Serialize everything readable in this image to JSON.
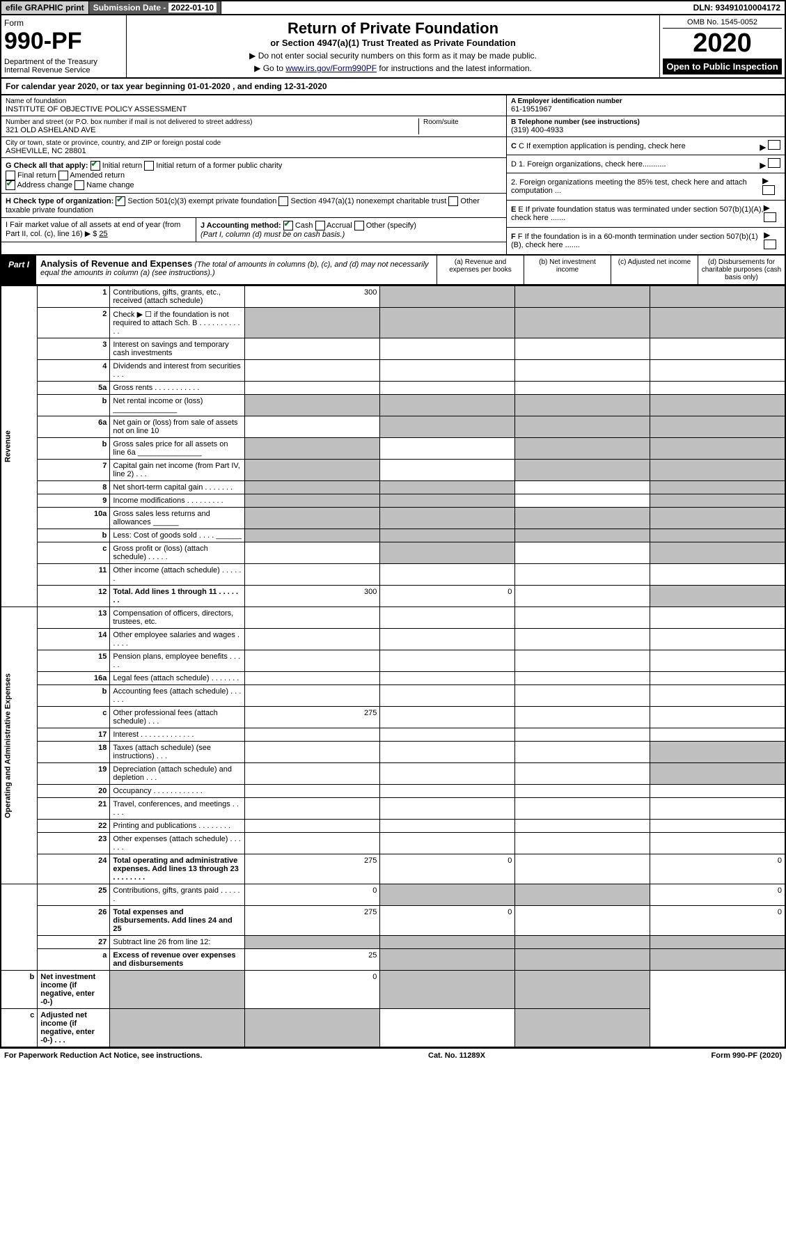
{
  "topbar": {
    "efile": "efile GRAPHIC print",
    "subdate_label": "Submission Date - ",
    "subdate": "2022-01-10",
    "dln": "DLN: 93491010004172"
  },
  "header": {
    "form_word": "Form",
    "form_no": "990-PF",
    "dept": "Department of the Treasury\nInternal Revenue Service",
    "title": "Return of Private Foundation",
    "sub": "or Section 4947(a)(1) Trust Treated as Private Foundation",
    "inst1": "▶ Do not enter social security numbers on this form as it may be made public.",
    "inst2_pre": "▶ Go to ",
    "inst2_link": "www.irs.gov/Form990PF",
    "inst2_post": " for instructions and the latest information.",
    "omb": "OMB No. 1545-0052",
    "year": "2020",
    "open": "Open to Public Inspection"
  },
  "cal": "For calendar year 2020, or tax year beginning 01-01-2020          , and ending 12-31-2020",
  "name": {
    "label": "Name of foundation",
    "val": "INSTITUTE OF OBJECTIVE POLICY ASSESSMENT"
  },
  "ein": {
    "label": "A Employer identification number",
    "val": "61-1951967"
  },
  "addr": {
    "label": "Number and street (or P.O. box number if mail is not delivered to street address)",
    "val": "321 OLD ASHELAND AVE",
    "room": "Room/suite"
  },
  "tel": {
    "label": "B Telephone number (see instructions)",
    "val": "(319) 400-4933"
  },
  "city": {
    "label": "City or town, state or province, country, and ZIP or foreign postal code",
    "val": "ASHEVILLE, NC  28801"
  },
  "c": "C If exemption application is pending, check here",
  "g": {
    "label": "G Check all that apply:",
    "opts": [
      "Initial return",
      "Initial return of a former public charity",
      "Final return",
      "Amended return",
      "Address change",
      "Name change"
    ],
    "checked": [
      0,
      4
    ]
  },
  "d": {
    "d1": "D 1. Foreign organizations, check here...........",
    "d2": "2. Foreign organizations meeting the 85% test, check here and attach computation ..."
  },
  "h": {
    "label": "H Check type of organization:",
    "opts": [
      "Section 501(c)(3) exempt private foundation",
      "Section 4947(a)(1) nonexempt charitable trust",
      "Other taxable private foundation"
    ],
    "checked": [
      0
    ]
  },
  "e": "E If private foundation status was terminated under section 507(b)(1)(A), check here .......",
  "i": {
    "label": "I Fair market value of all assets at end of year (from Part II, col. (c), line 16) ▶ $",
    "val": "25"
  },
  "j": {
    "label": "J Accounting method:",
    "opts": [
      "Cash",
      "Accrual",
      "Other (specify)"
    ],
    "checked": [
      0
    ],
    "note": "(Part I, column (d) must be on cash basis.)"
  },
  "f": "F If the foundation is in a 60-month termination under section 507(b)(1)(B), check here .......",
  "part1": {
    "tag": "Part I",
    "title": "Analysis of Revenue and Expenses",
    "note": "(The total of amounts in columns (b), (c), and (d) may not necessarily equal the amounts in column (a) (see instructions).)",
    "cols": [
      "(a) Revenue and expenses per books",
      "(b) Net investment income",
      "(c) Adjusted net income",
      "(d) Disbursements for charitable purposes (cash basis only)"
    ]
  },
  "vlabels": {
    "rev": "Revenue",
    "exp": "Operating and Administrative Expenses"
  },
  "rows": [
    {
      "ln": "1",
      "desc": "Contributions, gifts, grants, etc., received (attach schedule)",
      "a": "300",
      "grey": [
        "b",
        "c",
        "d"
      ]
    },
    {
      "ln": "2",
      "desc": "Check ▶ ☐ if the foundation is not required to attach Sch. B   .   .   .   .   .   .   .   .   .   .   .   .",
      "grey": [
        "a",
        "b",
        "c",
        "d"
      ]
    },
    {
      "ln": "3",
      "desc": "Interest on savings and temporary cash investments"
    },
    {
      "ln": "4",
      "desc": "Dividends and interest from securities   .   .   ."
    },
    {
      "ln": "5a",
      "desc": "Gross rents   .   .   .   .   .   .   .   .   .   .   ."
    },
    {
      "ln": "b",
      "desc": "Net rental income or (loss) _______________",
      "grey": [
        "a",
        "b",
        "c",
        "d"
      ]
    },
    {
      "ln": "6a",
      "desc": "Net gain or (loss) from sale of assets not on line 10",
      "grey": [
        "b",
        "c",
        "d"
      ]
    },
    {
      "ln": "b",
      "desc": "Gross sales price for all assets on line 6a _______________",
      "grey": [
        "a",
        "c",
        "d"
      ]
    },
    {
      "ln": "7",
      "desc": "Capital gain net income (from Part IV, line 2)   .   .   .",
      "grey": [
        "a",
        "c",
        "d"
      ]
    },
    {
      "ln": "8",
      "desc": "Net short-term capital gain   .   .   .   .   .   .   .",
      "grey": [
        "a",
        "b",
        "d"
      ]
    },
    {
      "ln": "9",
      "desc": "Income modifications   .   .   .   .   .   .   .   .   .",
      "grey": [
        "a",
        "b",
        "d"
      ]
    },
    {
      "ln": "10a",
      "desc": "Gross sales less returns and allowances ______",
      "grey": [
        "a",
        "b",
        "c",
        "d"
      ]
    },
    {
      "ln": "b",
      "desc": "Less: Cost of goods sold   .   .   .   .  ______",
      "grey": [
        "a",
        "b",
        "c",
        "d"
      ]
    },
    {
      "ln": "c",
      "desc": "Gross profit or (loss) (attach schedule)   .   .   .   .   .",
      "grey": [
        "b",
        "d"
      ]
    },
    {
      "ln": "11",
      "desc": "Other income (attach schedule)   .   .   .   .   .   ."
    },
    {
      "ln": "12",
      "desc": "Total. Add lines 1 through 11   .   .   .   .   .   .   .",
      "bold": true,
      "a": "300",
      "b": "0",
      "grey": [
        "d"
      ]
    },
    {
      "ln": "13",
      "desc": "Compensation of officers, directors, trustees, etc."
    },
    {
      "ln": "14",
      "desc": "Other employee salaries and wages   .   .   .   .   ."
    },
    {
      "ln": "15",
      "desc": "Pension plans, employee benefits   .   .   .   .   ."
    },
    {
      "ln": "16a",
      "desc": "Legal fees (attach schedule)   .   .   .   .   .   .   ."
    },
    {
      "ln": "b",
      "desc": "Accounting fees (attach schedule)   .   .   .   .   .   ."
    },
    {
      "ln": "c",
      "desc": "Other professional fees (attach schedule)   .   .   .",
      "a": "275"
    },
    {
      "ln": "17",
      "desc": "Interest   .   .   .   .   .   .   .   .   .   .   .   .   ."
    },
    {
      "ln": "18",
      "desc": "Taxes (attach schedule) (see instructions)   .   .   .",
      "grey": [
        "d"
      ]
    },
    {
      "ln": "19",
      "desc": "Depreciation (attach schedule) and depletion   .   .   .",
      "grey": [
        "d"
      ]
    },
    {
      "ln": "20",
      "desc": "Occupancy   .   .   .   .   .   .   .   .   .   .   .   ."
    },
    {
      "ln": "21",
      "desc": "Travel, conferences, and meetings   .   .   .   .   ."
    },
    {
      "ln": "22",
      "desc": "Printing and publications   .   .   .   .   .   .   .   ."
    },
    {
      "ln": "23",
      "desc": "Other expenses (attach schedule)   .   .   .   .   .   ."
    },
    {
      "ln": "24",
      "desc": "Total operating and administrative expenses. Add lines 13 through 23   .   .   .   .   .   .   .   .",
      "bold": true,
      "a": "275",
      "b": "0",
      "d": "0"
    },
    {
      "ln": "25",
      "desc": "Contributions, gifts, grants paid   .   .   .   .   .   .",
      "a": "0",
      "grey": [
        "b",
        "c"
      ],
      "d": "0"
    },
    {
      "ln": "26",
      "desc": "Total expenses and disbursements. Add lines 24 and 25",
      "bold": true,
      "a": "275",
      "b": "0",
      "d": "0"
    },
    {
      "ln": "27",
      "desc": "Subtract line 26 from line 12:",
      "grey": [
        "a",
        "b",
        "c",
        "d"
      ]
    },
    {
      "ln": "a",
      "desc": "Excess of revenue over expenses and disbursements",
      "bold": true,
      "a": "25",
      "grey": [
        "b",
        "c",
        "d"
      ]
    },
    {
      "ln": "b",
      "desc": "Net investment income (if negative, enter -0-)",
      "bold": true,
      "grey": [
        "a",
        "c",
        "d"
      ],
      "b": "0"
    },
    {
      "ln": "c",
      "desc": "Adjusted net income (if negative, enter -0-)   .   .   .",
      "bold": true,
      "grey": [
        "a",
        "b",
        "d"
      ]
    }
  ],
  "footer": {
    "left": "For Paperwork Reduction Act Notice, see instructions.",
    "mid": "Cat. No. 11289X",
    "right": "Form 990-PF (2020)"
  }
}
